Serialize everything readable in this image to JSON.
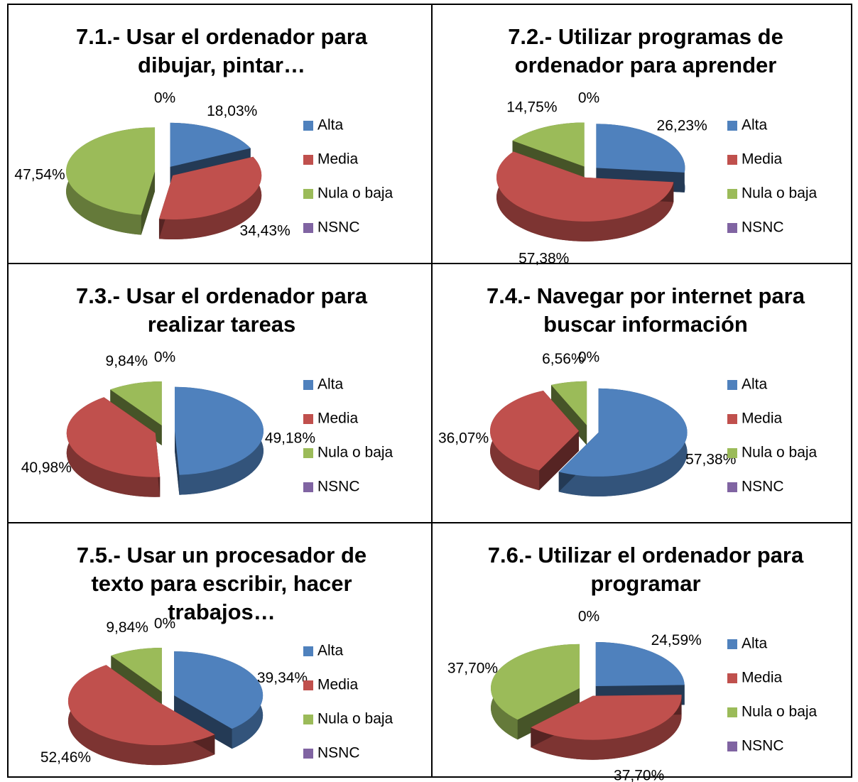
{
  "chart_data": [
    {
      "type": "pie",
      "title": "7.1.- Usar el ordenador para dibujar, pintar…",
      "categories": [
        "Alta",
        "Media",
        "Nula o baja",
        "NSNC"
      ],
      "values": [
        18.03,
        34.43,
        47.54,
        0
      ],
      "value_labels": [
        "18,03%",
        "34,43%",
        "47,54%",
        "0%"
      ],
      "colors": [
        "#4f81bd",
        "#c0504d",
        "#9bbb59",
        "#8064a2"
      ]
    },
    {
      "type": "pie",
      "title": "7.2.- Utilizar programas de ordenador para aprender",
      "categories": [
        "Alta",
        "Media",
        "Nula o baja",
        "NSNC"
      ],
      "values": [
        26.23,
        57.38,
        14.75,
        0
      ],
      "value_labels": [
        "26,23%",
        "57,38%",
        "14,75%",
        "0%"
      ],
      "colors": [
        "#4f81bd",
        "#c0504d",
        "#9bbb59",
        "#8064a2"
      ]
    },
    {
      "type": "pie",
      "title": "7.3.- Usar el ordenador para realizar tareas",
      "categories": [
        "Alta",
        "Media",
        "Nula o baja",
        "NSNC"
      ],
      "values": [
        49.18,
        40.98,
        9.84,
        0
      ],
      "value_labels": [
        "49,18%",
        "40,98%",
        "9,84%",
        "0%"
      ],
      "colors": [
        "#4f81bd",
        "#c0504d",
        "#9bbb59",
        "#8064a2"
      ]
    },
    {
      "type": "pie",
      "title": "7.4.- Navegar por internet para buscar información",
      "categories": [
        "Alta",
        "Media",
        "Nula o baja",
        "NSNC"
      ],
      "values": [
        57.38,
        36.07,
        6.56,
        0
      ],
      "value_labels": [
        "57,38%",
        "36,07%",
        "6,56%",
        "0%"
      ],
      "colors": [
        "#4f81bd",
        "#c0504d",
        "#9bbb59",
        "#8064a2"
      ]
    },
    {
      "type": "pie",
      "title": "7.5.- Usar un procesador de texto para escribir, hacer trabajos…",
      "categories": [
        "Alta",
        "Media",
        "Nula o baja",
        "NSNC"
      ],
      "values": [
        39.34,
        52.46,
        9.84,
        0
      ],
      "value_labels": [
        "39,34%",
        "52,46%",
        "9,84%",
        "0%"
      ],
      "colors": [
        "#4f81bd",
        "#c0504d",
        "#9bbb59",
        "#8064a2"
      ]
    },
    {
      "type": "pie",
      "title": "7.6.- Utilizar el ordenador para programar",
      "categories": [
        "Alta",
        "Media",
        "Nula o baja",
        "NSNC"
      ],
      "values": [
        24.59,
        37.7,
        37.7,
        0
      ],
      "value_labels": [
        "24,59%",
        "37,70%",
        "37,70%",
        "0%"
      ],
      "colors": [
        "#4f81bd",
        "#c0504d",
        "#9bbb59",
        "#8064a2"
      ]
    }
  ]
}
